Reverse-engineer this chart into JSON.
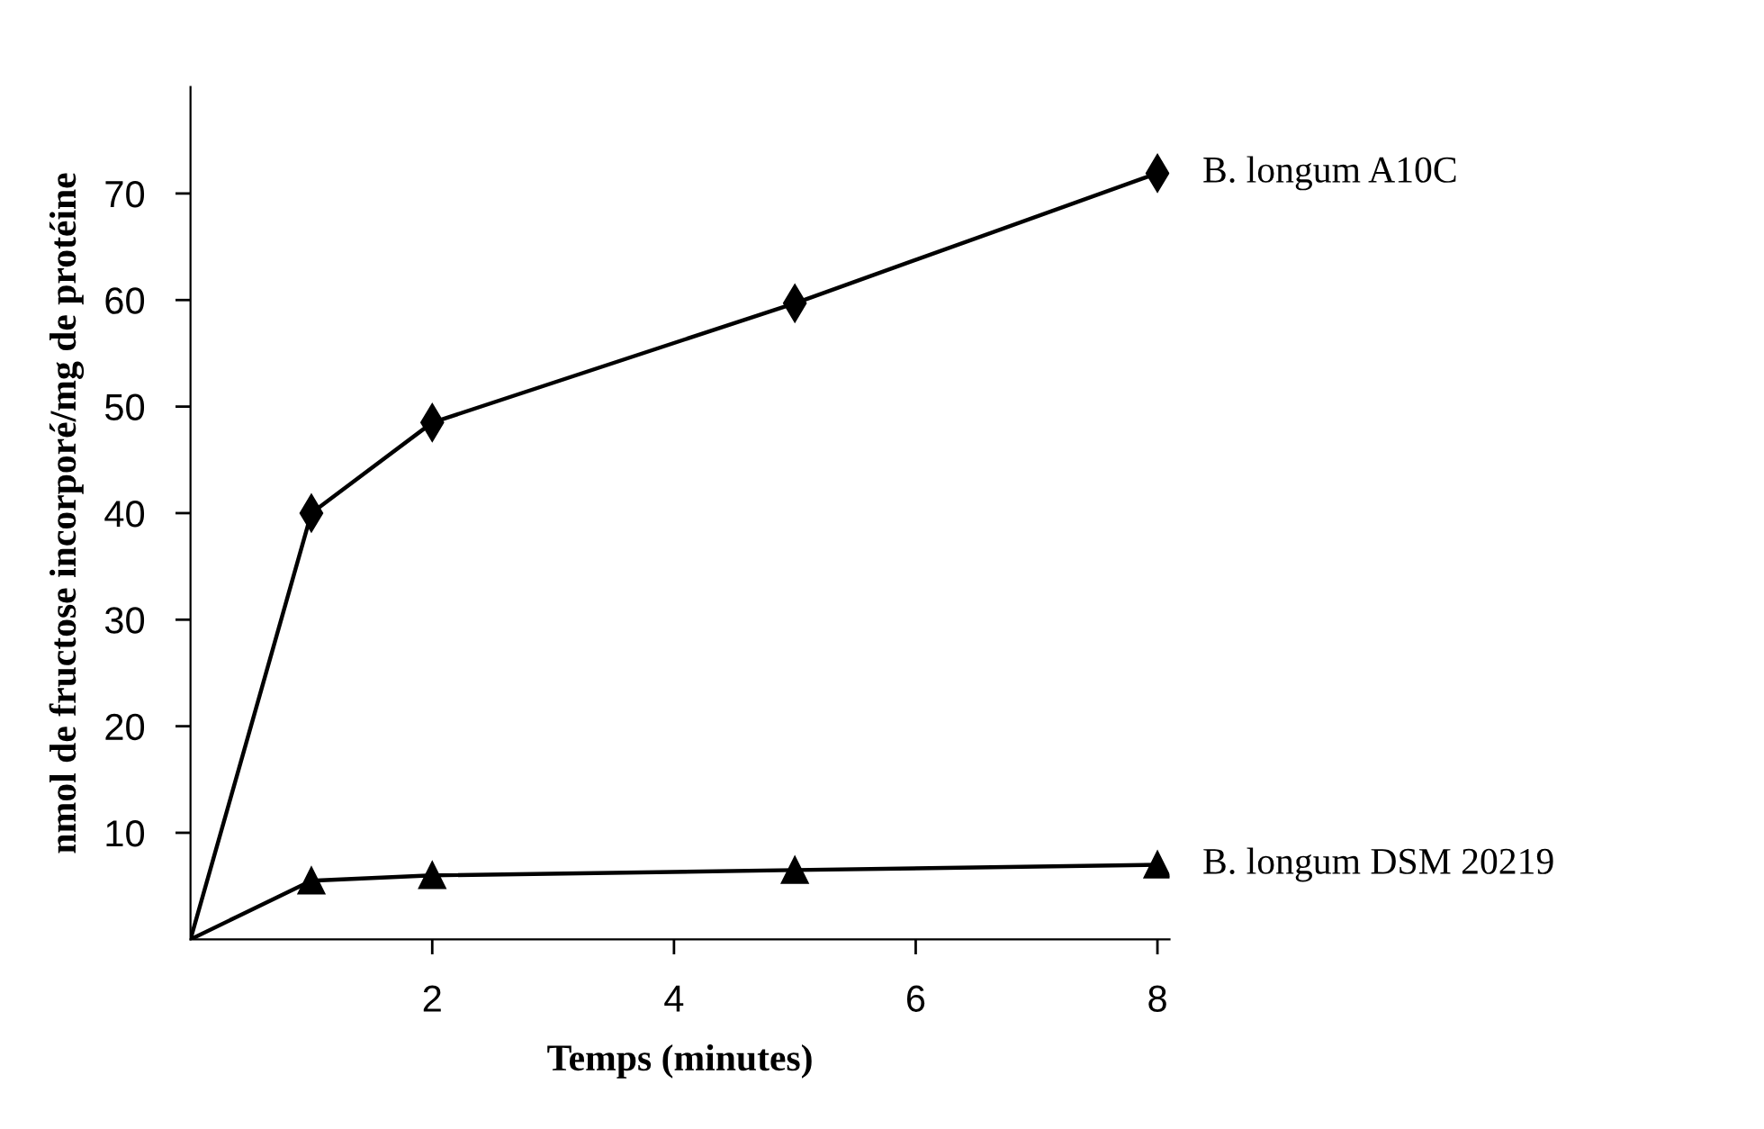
{
  "chart_data": {
    "type": "line",
    "xlabel": "Temps (minutes)",
    "ylabel": "nmol de fructose incorporé/mg de protéine",
    "xlim": [
      0,
      8.1
    ],
    "xticks": [
      2,
      4,
      6,
      8
    ],
    "ylim": [
      0,
      80
    ],
    "yticks": [
      10,
      20,
      30,
      40,
      50,
      60,
      70
    ],
    "grid": false,
    "legend": false,
    "series": [
      {
        "name": "B. longum A10C",
        "color": "#000000",
        "marker": "diamond",
        "x": [
          0,
          1,
          2,
          5,
          8
        ],
        "values": [
          0,
          40,
          48.5,
          59.7,
          71.9
        ]
      },
      {
        "name": "B. longum DSM 20219",
        "color": "#000000",
        "marker": "triangle",
        "x": [
          0,
          1,
          2,
          5,
          8
        ],
        "values": [
          0,
          5.5,
          6,
          6.5,
          7
        ]
      }
    ]
  }
}
